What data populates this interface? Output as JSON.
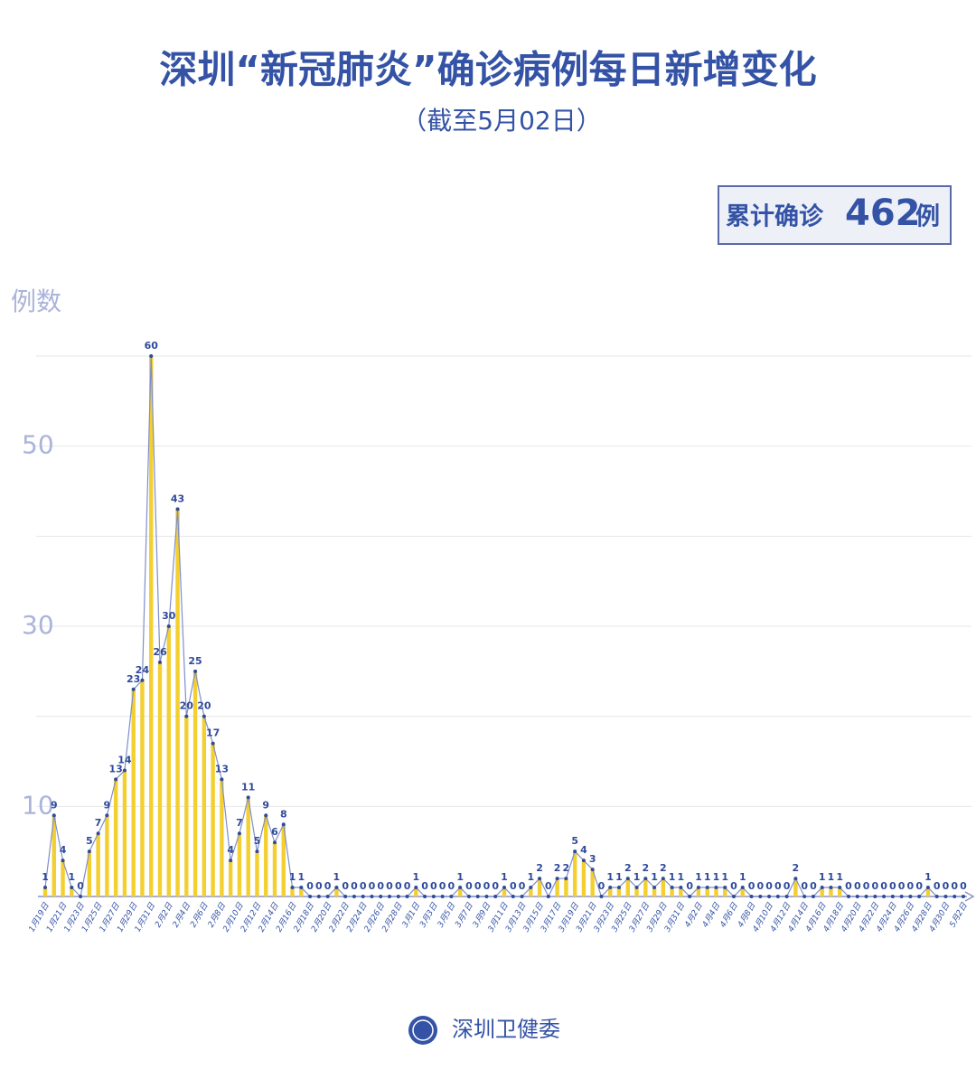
{
  "chart_data": {
    "type": "line",
    "title": "深圳“新冠肺炎”确诊病例每日新增变化",
    "subtitle": "（截至5月02日）",
    "total_prefix": "累计确诊",
    "total": 462,
    "total_suffix": "例",
    "y_label": "例数",
    "source": "深圳卫健委",
    "color": "#2f4a9a",
    "bar_color": "#f3cf2f",
    "bars": true,
    "grid": true,
    "ylim": [
      0,
      60
    ],
    "yticks": [
      10,
      30,
      50
    ],
    "gridlines": [
      10,
      20,
      30,
      40,
      50,
      60
    ],
    "categories": [
      "1月19日",
      null,
      "1月21日",
      null,
      "1月23日",
      null,
      "1月25日",
      null,
      "1月27日",
      null,
      "1月29日",
      null,
      "1月31日",
      null,
      "2月2日",
      null,
      "2月4日",
      null,
      "2月6日",
      null,
      "2月8日",
      null,
      "2月10日",
      null,
      "2月12日",
      null,
      "2月14日",
      null,
      "2月16日",
      null,
      "2月18日",
      null,
      "2月20日",
      null,
      "2月22日",
      null,
      "2月24日",
      null,
      "2月26日",
      null,
      "2月28日",
      null,
      "3月1日",
      null,
      "3月3日",
      null,
      "3月5日",
      null,
      "3月7日",
      null,
      "3月9日",
      null,
      "3月11日",
      null,
      "3月13日",
      null,
      "3月15日",
      null,
      "3月17日",
      null,
      "3月19日",
      null,
      "3月21日",
      null,
      "3月23日",
      null,
      "3月25日",
      null,
      "3月27日",
      null,
      "3月29日",
      null,
      "3月31日",
      null,
      "4月2日",
      null,
      "4月4日",
      null,
      "4月6日",
      null,
      "4月8日",
      null,
      "4月10日",
      null,
      "4月12日",
      null,
      "4月14日",
      null,
      "4月16日",
      null,
      "4月18日",
      null,
      "4月20日",
      null,
      "4月22日",
      null,
      "4月24日",
      null,
      "4月26日",
      null,
      "4月28日",
      null,
      "4月30日",
      null,
      "5月2日"
    ],
    "values": [
      1,
      9,
      4,
      1,
      0,
      5,
      7,
      9,
      13,
      14,
      23,
      24,
      60,
      26,
      30,
      43,
      20,
      25,
      20,
      17,
      13,
      4,
      7,
      11,
      5,
      9,
      6,
      8,
      1,
      1,
      0,
      0,
      0,
      1,
      0,
      0,
      0,
      0,
      0,
      0,
      0,
      0,
      1,
      0,
      0,
      0,
      0,
      1,
      0,
      0,
      0,
      0,
      1,
      0,
      0,
      1,
      2,
      0,
      2,
      2,
      5,
      4,
      3,
      0,
      1,
      1,
      2,
      1,
      2,
      1,
      2,
      1,
      1,
      0,
      1,
      1,
      1,
      1,
      0,
      1,
      0,
      0,
      0,
      0,
      0,
      2,
      0,
      0,
      1,
      1,
      1,
      0,
      0,
      0,
      0,
      0,
      0,
      0,
      0,
      0,
      1,
      0,
      0,
      0,
      0
    ]
  }
}
